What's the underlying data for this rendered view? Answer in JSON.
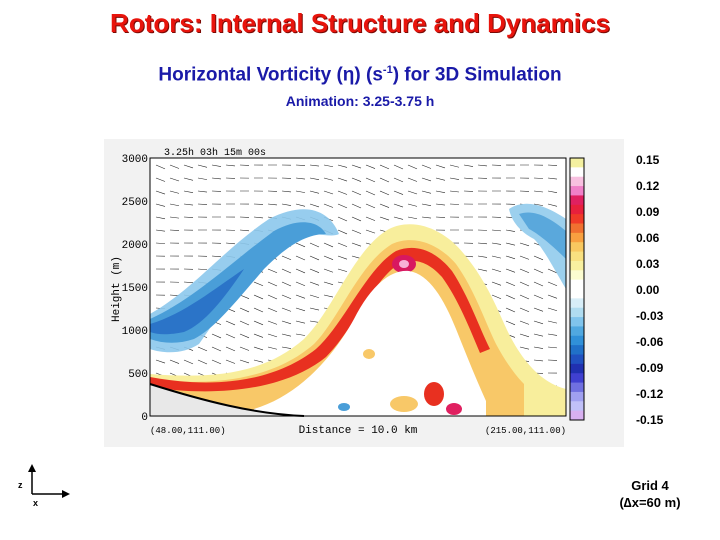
{
  "title": "Rotors:  Internal Structure and Dynamics",
  "subtitle": {
    "prefix": "Horizontal Vorticity (",
    "symbol": "η",
    "middle": ") (s",
    "exponent": "-1",
    "suffix": ") for 3D Simulation"
  },
  "animation_label": "Animation: 3.25-3.75 h",
  "plot": {
    "time_label": "3.25h  03h 15m 00s",
    "y_axis_label": "Height (m)",
    "y_ticks": [
      "3000",
      "2500",
      "2000",
      "1500",
      "1000",
      "500",
      "0"
    ],
    "x_axis_label": "Distance  =     10.0 km",
    "left_coord": "(48.00,111.00)",
    "right_coord": "(215.00,111.00)"
  },
  "colorbar": {
    "labels": [
      "0.15",
      "0.12",
      "0.09",
      "0.06",
      "0.03",
      "0.00",
      "-0.03",
      "-0.06",
      "-0.09",
      "-0.12",
      "-0.15"
    ],
    "colors": [
      "#f4f0a0",
      "#ffffff",
      "#f8c0e0",
      "#f080c8",
      "#e02060",
      "#e8203c",
      "#f03a28",
      "#f07030",
      "#f8a040",
      "#f8c860",
      "#f8e080",
      "#f8f0a0",
      "#fcfcd0",
      "#ffffff",
      "#ffffff",
      "#d8eef8",
      "#b0dcf0",
      "#80c4ec",
      "#50a8e0",
      "#3090d8",
      "#2070c8",
      "#2050c0",
      "#2030b0",
      "#4040d0",
      "#7070e0",
      "#a0a0f0",
      "#c0c0f8",
      "#d8b0f0"
    ]
  },
  "axes_icon": {
    "z": "z",
    "x": "x"
  },
  "grid_label": {
    "line1": "Grid 4",
    "line2": "(∆x=60 m)"
  }
}
